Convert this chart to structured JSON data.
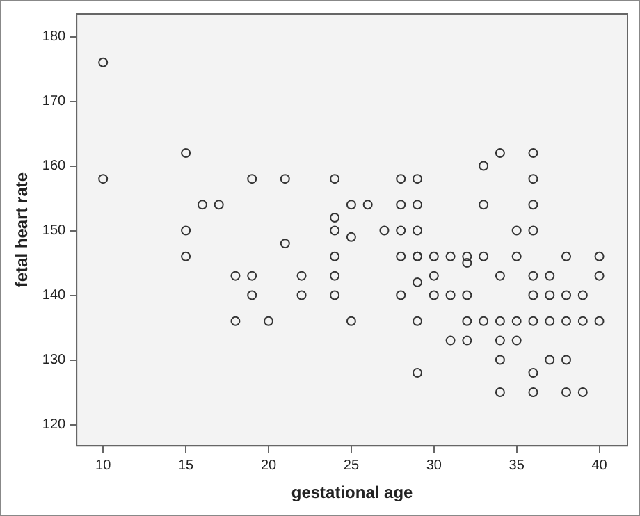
{
  "chart_data": {
    "type": "scatter",
    "xlabel": "gestational age",
    "ylabel": "fetal heart rate",
    "xlim": [
      8.4,
      41.7
    ],
    "ylim": [
      116.7,
      183.5
    ],
    "xticks": [
      10,
      15,
      20,
      25,
      30,
      35,
      40
    ],
    "yticks": [
      120,
      130,
      140,
      150,
      160,
      170,
      180
    ],
    "grid": false,
    "legend": false,
    "marker": "circle",
    "series": [
      {
        "color": "#333333",
        "x": [
          10,
          10,
          15,
          15,
          15,
          16,
          17,
          18,
          18,
          19,
          19,
          19,
          20,
          21,
          21,
          22,
          22,
          24,
          24,
          24,
          24,
          24,
          24,
          25,
          25,
          25,
          26,
          27,
          28,
          28,
          28,
          28,
          28,
          29,
          29,
          29,
          29,
          29,
          29,
          29,
          29,
          30,
          30,
          30,
          31,
          31,
          31,
          32,
          32,
          32,
          32,
          32,
          33,
          33,
          33,
          33,
          34,
          34,
          34,
          34,
          34,
          34,
          35,
          35,
          35,
          35,
          36,
          36,
          36,
          36,
          36,
          36,
          36,
          36,
          36,
          37,
          37,
          37,
          37,
          38,
          38,
          38,
          38,
          38,
          39,
          39,
          39,
          40,
          40,
          40
        ],
        "values": [
          176,
          158,
          162,
          150,
          146,
          154,
          154,
          143,
          136,
          158,
          143,
          140,
          136,
          158,
          148,
          143,
          140,
          158,
          152,
          150,
          146,
          143,
          140,
          154,
          149,
          136,
          154,
          150,
          158,
          154,
          150,
          146,
          140,
          158,
          154,
          150,
          146,
          142,
          136,
          128,
          146,
          146,
          143,
          140,
          146,
          140,
          133,
          146,
          145,
          140,
          136,
          133,
          160,
          154,
          146,
          136,
          162,
          143,
          136,
          130,
          125,
          133,
          150,
          146,
          136,
          133,
          162,
          158,
          154,
          150,
          143,
          140,
          136,
          128,
          125,
          143,
          140,
          136,
          130,
          146,
          140,
          136,
          130,
          125,
          140,
          136,
          125,
          146,
          143,
          136
        ]
      }
    ]
  }
}
